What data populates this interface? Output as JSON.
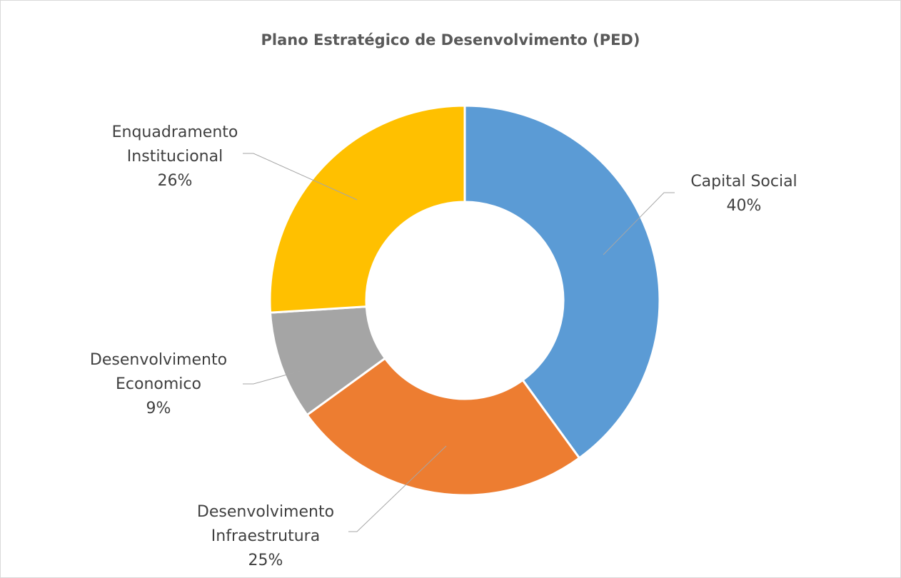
{
  "chart_data": {
    "type": "pie",
    "title": "Plano Estratégico de Desenvolvimento (PED)",
    "categories": [
      "Capital Social",
      "Desenvolvimento Infraestrutura",
      "Desenvolvimento Economico",
      "Enquadramento Institucional"
    ],
    "values": [
      40,
      25,
      9,
      26
    ],
    "value_labels": [
      "40%",
      "25%",
      "9%",
      "26%"
    ],
    "colors": [
      "#5b9bd5",
      "#ed7d31",
      "#a5a5a5",
      "#ffc000"
    ],
    "donut": true
  }
}
